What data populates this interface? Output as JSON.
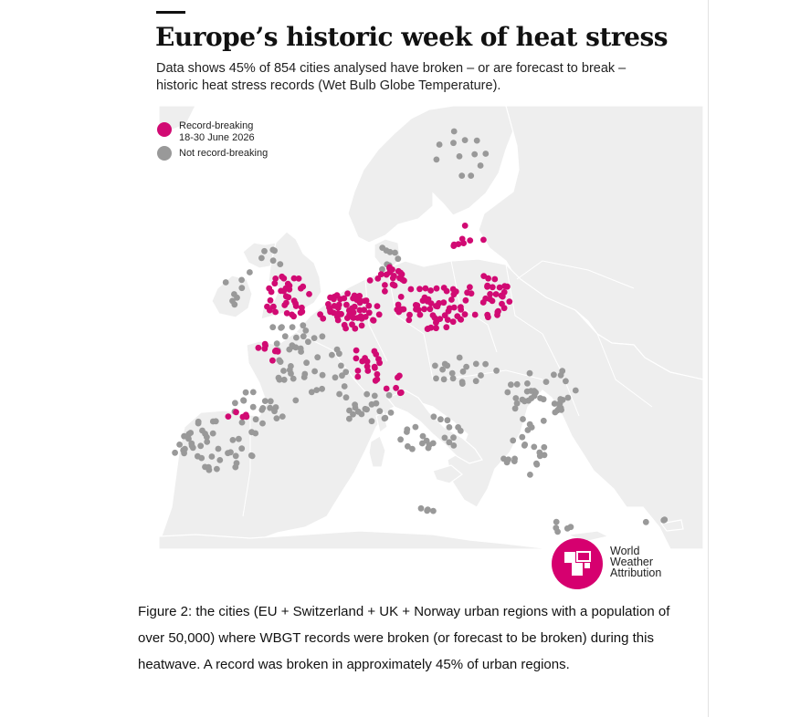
{
  "title": "Europe’s historic week of heat stress",
  "subtitle": "Data shows 45% of 854 cities analysed have broken – or are forecast to break – historic heat stress records (Wet Bulb Globe Temperature).",
  "legend": {
    "record": {
      "line1": "Record-breaking",
      "line2": "18-30 June 2026",
      "color": "#d10a73"
    },
    "not_record": {
      "label": "Not record-breaking",
      "color": "#999999"
    }
  },
  "colors": {
    "land": "#eeeeee",
    "sea": "#ffffff",
    "border": "#ffffff",
    "accent": "#d6006f"
  },
  "logo": {
    "icon": "world-weather-attribution-logo",
    "line1": "World",
    "line2": "Weather",
    "line3": "Attribution"
  },
  "caption": "Figure 2: the cities (EU + Switzerland + UK + Norway urban regions with a population of over 50,000) where WBGT records were broken (or forecast to be broken) during this heatwave. A record was broken in approximately 45% of urban regions."
}
